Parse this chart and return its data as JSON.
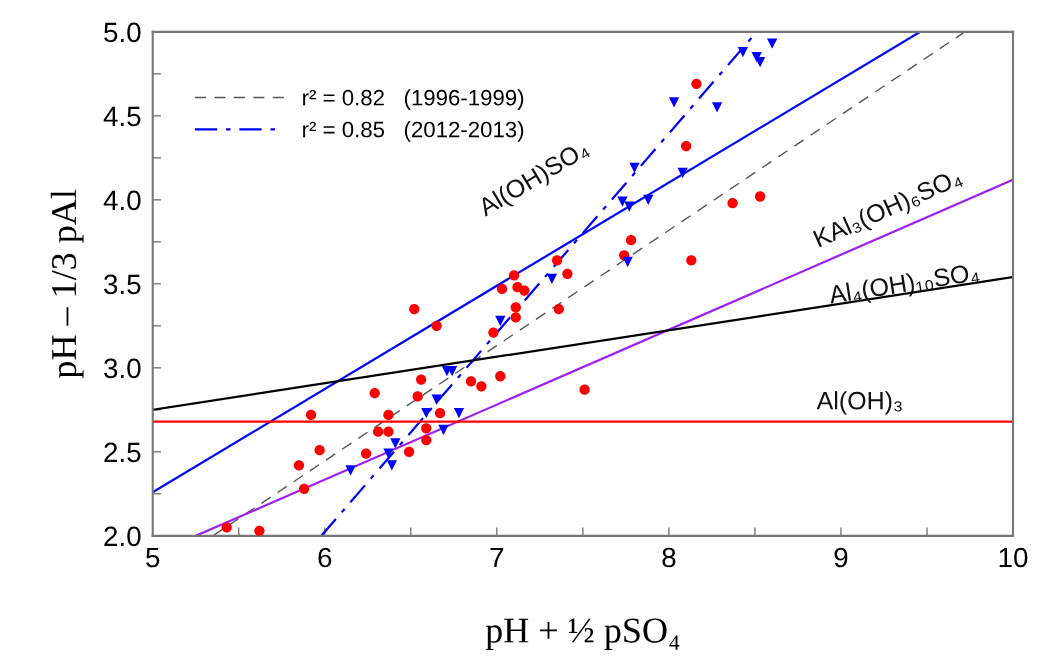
{
  "chart_data": {
    "type": "scatter",
    "xlabel": "pH + ½ pSO₄",
    "ylabel": "pH – 1/3 pAl",
    "xlim": [
      5,
      10
    ],
    "ylim": [
      2.0,
      5.0
    ],
    "xticks": [
      5,
      {
        "value": 5.5,
        "label": null
      },
      6,
      {
        "value": 6.5,
        "label": null
      },
      7,
      {
        "value": 7.5,
        "label": null
      },
      8,
      {
        "value": 8.5,
        "label": null
      },
      9,
      {
        "value": 9.5,
        "label": null
      },
      10
    ],
    "yticks": [
      {
        "value": 2.0,
        "label": "2.0"
      },
      {
        "value": 2.25,
        "label": null
      },
      2.5,
      {
        "value": 2.75,
        "label": null
      },
      {
        "value": 3.0,
        "label": "3.0"
      },
      {
        "value": 3.25,
        "label": null
      },
      3.5,
      {
        "value": 3.75,
        "label": null
      },
      {
        "value": 4.0,
        "label": "4.0"
      },
      {
        "value": 4.25,
        "label": null
      },
      4.5,
      {
        "value": 4.75,
        "label": null
      },
      {
        "value": 5.0,
        "label": "5.0"
      }
    ],
    "grid": false,
    "legend": "top left",
    "series": [
      {
        "type": "line",
        "name": "r² = 0.82   (1996-1999)",
        "color": "#555555",
        "line_style": "dashed",
        "marker": "none",
        "x": [
          5.35,
          9.72
        ],
        "values": [
          2.0,
          5.0
        ]
      },
      {
        "type": "line",
        "name": "r² = 0.85   (2012-2013)",
        "color": "#0000ff",
        "line_style": "dashdot",
        "marker": "none",
        "x": [
          5.98,
          8.51
        ],
        "values": [
          2.0,
          5.0
        ]
      },
      {
        "type": "line",
        "color": "#0000ff",
        "line_style": "solid",
        "marker": "none",
        "x": [
          5,
          9.46
        ],
        "values": [
          2.26,
          5.0
        ]
      },
      {
        "type": "line",
        "color": "#a020f0",
        "line_style": "solid",
        "marker": "none",
        "x": [
          5.25,
          10
        ],
        "values": [
          2.0,
          4.12
        ]
      },
      {
        "type": "line",
        "color": "#000000",
        "line_style": "solid",
        "marker": "none",
        "x": [
          5,
          10
        ],
        "values": [
          2.75,
          3.54
        ]
      },
      {
        "type": "line",
        "color": "#ff0000",
        "line_style": "solid",
        "marker": "none",
        "x": [
          5,
          10
        ],
        "values": [
          2.68,
          2.68
        ]
      },
      {
        "color": "#ff0000",
        "marker": "circle",
        "x": [
          5.43,
          5.62,
          5.85,
          5.88,
          5.92,
          5.97,
          6.24,
          6.29,
          6.31,
          6.37,
          6.37,
          6.49,
          6.52,
          6.54,
          6.56,
          6.59,
          6.59,
          6.65,
          6.67,
          6.85,
          6.91,
          6.98,
          7.02,
          7.03,
          7.1,
          7.11,
          7.11,
          7.12,
          7.16,
          7.35,
          7.36,
          7.41,
          7.51,
          7.74,
          7.78,
          8.1,
          8.13,
          8.16,
          8.37,
          8.53
        ],
        "values": [
          2.05,
          2.03,
          2.42,
          2.28,
          2.72,
          2.51,
          2.49,
          2.85,
          2.62,
          2.62,
          2.72,
          2.5,
          3.35,
          2.83,
          2.93,
          2.64,
          2.57,
          3.25,
          2.73,
          2.92,
          2.89,
          3.21,
          2.95,
          3.47,
          3.55,
          3.36,
          3.3,
          3.48,
          3.46,
          3.64,
          3.35,
          3.56,
          2.87,
          3.67,
          3.76,
          4.32,
          3.64,
          4.69,
          3.98,
          4.02
        ]
      },
      {
        "color": "#0000ff",
        "marker": "triangle",
        "x": [
          6.15,
          6.37,
          6.39,
          6.41,
          6.59,
          6.65,
          6.69,
          6.71,
          6.74,
          6.78,
          7.02,
          7.32,
          7.73,
          7.76,
          7.77,
          7.8,
          7.88,
          8.03,
          8.08,
          8.28,
          8.43,
          8.51,
          8.53,
          8.6
        ],
        "values": [
          2.39,
          2.49,
          2.42,
          2.55,
          2.73,
          2.81,
          2.63,
          2.98,
          2.98,
          2.73,
          3.28,
          3.53,
          3.99,
          3.63,
          3.96,
          4.19,
          4.0,
          4.58,
          4.16,
          4.55,
          4.88,
          4.85,
          4.82,
          4.93
        ]
      }
    ],
    "annotations": [
      "Al(OH)SO₄",
      "KAl₃(OH)₆SO₄",
      "Al₄(OH)₁₀SO₄",
      "Al(OH)₃"
    ]
  }
}
